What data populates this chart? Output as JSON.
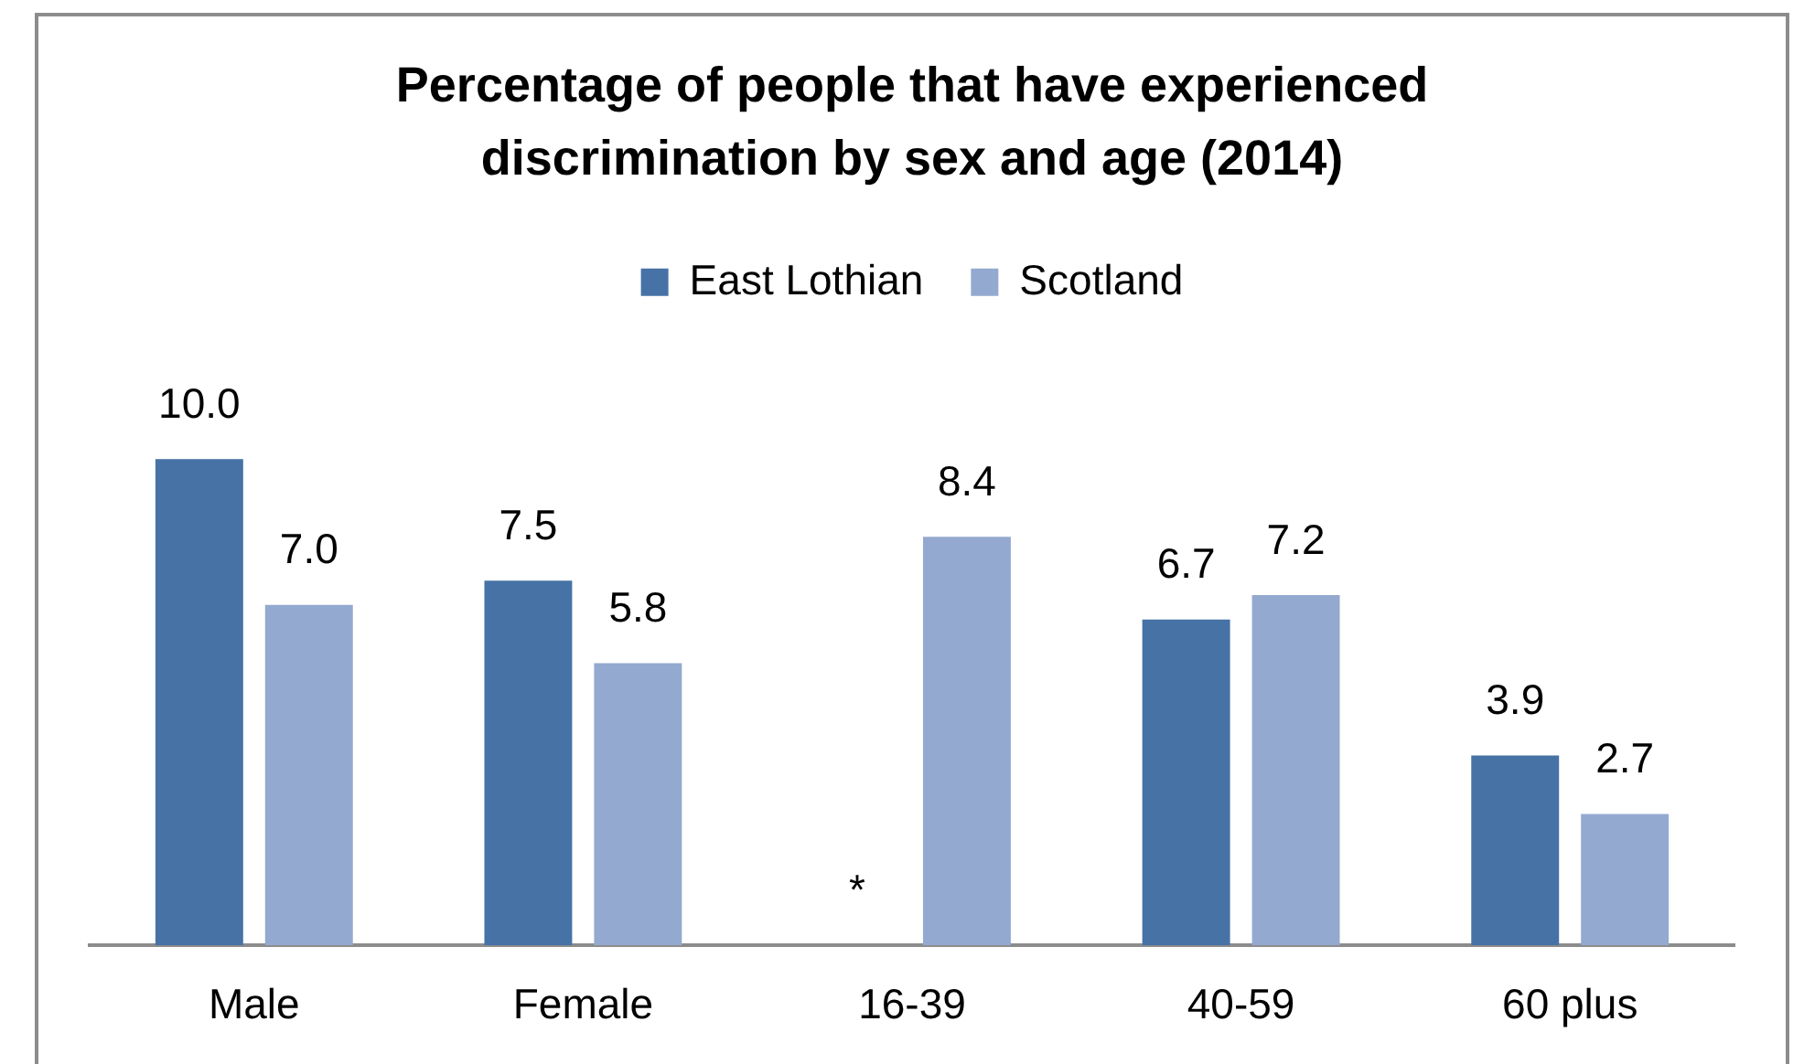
{
  "chart_data": {
    "type": "bar",
    "title": "Percentage of people that have experienced discrimination by sex and age (2014)",
    "categories": [
      "Male",
      "Female",
      "16-39",
      "40-59",
      "60 plus"
    ],
    "series": [
      {
        "name": "East Lothian",
        "color": "#4672a6",
        "values": [
          10.0,
          7.5,
          null,
          6.7,
          3.9
        ],
        "value_labels": [
          "10.0",
          "7.5",
          "*",
          "6.7",
          "3.9"
        ]
      },
      {
        "name": "Scotland",
        "color": "#94a9d0",
        "values": [
          7.0,
          5.8,
          8.4,
          7.2,
          2.7
        ],
        "value_labels": [
          "7.0",
          "5.8",
          "8.4",
          "7.2",
          "2.7"
        ]
      }
    ],
    "legend": "top",
    "tick_labels": "x"
  }
}
